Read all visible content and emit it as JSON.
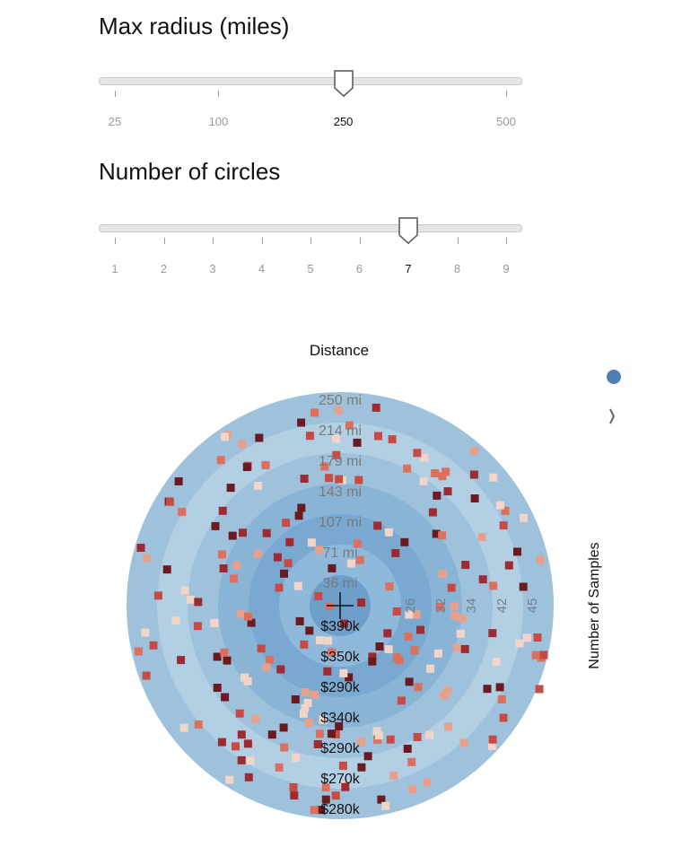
{
  "radius_control": {
    "title": "Max radius (miles)",
    "ticks": [
      "25",
      "100",
      "250",
      "500"
    ],
    "tick_values": [
      25,
      100,
      250,
      500
    ],
    "min": 25,
    "max": 500,
    "value": 250,
    "selected_label": "250"
  },
  "circles_control": {
    "title": "Number of circles",
    "ticks": [
      "1",
      "2",
      "3",
      "4",
      "5",
      "6",
      "7",
      "8",
      "9"
    ],
    "min": 1,
    "max": 9,
    "value": 7,
    "selected_label": "7"
  },
  "chart_data": {
    "type": "scatter",
    "title": "Distance",
    "right_axis_title": "Number of Samples",
    "ring_labels": [
      "250 mi",
      "214 mi",
      "179 mi",
      "143 mi",
      "107 mi",
      "71 mi",
      "36 mi"
    ],
    "price_labels": [
      "$390k",
      "$350k",
      "$290k",
      "$340k",
      "$290k",
      "$270k",
      "$280k"
    ],
    "sample_count_labels": [
      "26",
      "32",
      "34",
      "42",
      "45"
    ],
    "ring_colors": [
      "#9fc2dc",
      "#b2cfe4",
      "#9fc2dc",
      "#8ab4d6",
      "#79a9d1",
      "#8fb9da",
      "#6e9fcb"
    ],
    "point_colors": [
      "#f2d5c8",
      "#e8a08a",
      "#dc6f5e",
      "#c84a45",
      "#9e2b32",
      "#6b1a22"
    ],
    "center_marker": "crosshair"
  }
}
